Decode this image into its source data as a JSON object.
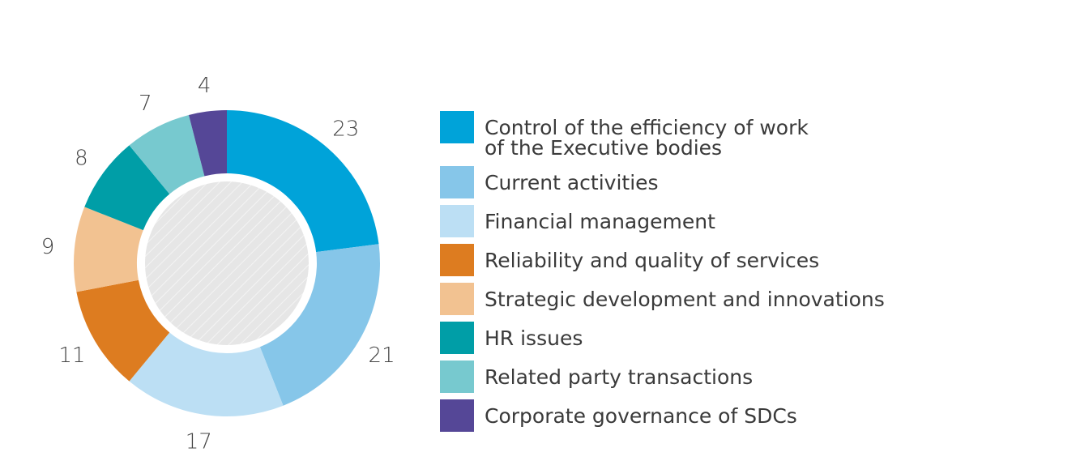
{
  "chart_data": {
    "type": "pie",
    "variant": "donut",
    "start": "top, clockwise",
    "slices": [
      {
        "label": "Control of the efficiency of work\nof the Executive bodies",
        "value": 23,
        "color": "#00a3d9"
      },
      {
        "label": "Current activities",
        "value": 21,
        "color": "#86c6e9"
      },
      {
        "label": "Financial management",
        "value": 17,
        "color": "#bcdff4"
      },
      {
        "label": "Reliability and quality of services",
        "value": 11,
        "color": "#dd7c20"
      },
      {
        "label": "Strategic development and innovations",
        "value": 9,
        "color": "#f2c291"
      },
      {
        "label": "HR issues",
        "value": 8,
        "color": "#009ea7"
      },
      {
        "label": "Related party transactions",
        "value": 7,
        "color": "#77c9cf"
      },
      {
        "label": "Corporate governance of SDCs",
        "value": 4,
        "color": "#554797"
      }
    ],
    "legend_placement": "right",
    "center_fill": "hatched grey"
  }
}
